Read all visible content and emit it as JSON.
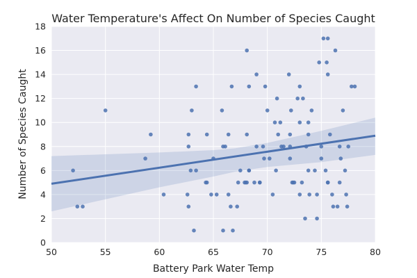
{
  "chart_data": {
    "type": "scatter",
    "title": "Water Temperature's Affect On Number of Species Caught",
    "xlabel": "Battery Park Water Temp",
    "ylabel": "Number of Species Caught",
    "xlim": [
      50,
      80
    ],
    "ylim": [
      0,
      18
    ],
    "xticks": [
      50,
      55,
      60,
      65,
      70,
      75,
      80
    ],
    "yticks": [
      0,
      2,
      4,
      6,
      8,
      10,
      12,
      14,
      16,
      18
    ],
    "grid": true,
    "background": "#EAEAF2",
    "point_color": "#4C72B0",
    "line_color": "#4C72B0",
    "band_color": "#4C72B0",
    "regression": {
      "x": [
        50,
        80
      ],
      "y": [
        4.9,
        8.9
      ]
    },
    "confidence_band": {
      "x": [
        50,
        55,
        60,
        65,
        67,
        70,
        75,
        80
      ],
      "upper": [
        7.2,
        7.35,
        7.5,
        7.7,
        7.85,
        8.3,
        9.3,
        10.4
      ],
      "lower": [
        2.6,
        3.6,
        4.6,
        5.5,
        5.9,
        6.3,
        6.7,
        7.3
      ]
    },
    "points": [
      [
        52.0,
        6
      ],
      [
        52.4,
        3
      ],
      [
        52.9,
        3
      ],
      [
        55.0,
        11
      ],
      [
        58.7,
        7
      ],
      [
        59.2,
        9
      ],
      [
        60.4,
        4
      ],
      [
        62.6,
        4
      ],
      [
        62.7,
        3
      ],
      [
        62.7,
        8
      ],
      [
        62.7,
        9
      ],
      [
        62.9,
        6
      ],
      [
        63.0,
        11
      ],
      [
        63.2,
        1
      ],
      [
        63.4,
        13
      ],
      [
        63.4,
        6
      ],
      [
        64.3,
        5
      ],
      [
        64.4,
        9
      ],
      [
        64.4,
        5
      ],
      [
        64.8,
        4
      ],
      [
        65.0,
        7
      ],
      [
        65.3,
        4
      ],
      [
        65.8,
        11
      ],
      [
        65.9,
        1
      ],
      [
        65.9,
        8
      ],
      [
        66.1,
        8
      ],
      [
        66.4,
        4
      ],
      [
        66.4,
        9
      ],
      [
        66.6,
        3
      ],
      [
        66.7,
        13
      ],
      [
        66.8,
        1
      ],
      [
        67.2,
        3
      ],
      [
        67.3,
        5
      ],
      [
        67.5,
        6
      ],
      [
        67.9,
        5
      ],
      [
        68.0,
        5
      ],
      [
        68.1,
        9
      ],
      [
        68.1,
        5
      ],
      [
        68.1,
        16
      ],
      [
        68.3,
        13
      ],
      [
        68.3,
        6
      ],
      [
        68.3,
        6
      ],
      [
        68.8,
        5
      ],
      [
        69.0,
        14
      ],
      [
        69.0,
        8
      ],
      [
        69.3,
        5
      ],
      [
        69.3,
        5
      ],
      [
        69.6,
        8
      ],
      [
        69.7,
        7
      ],
      [
        69.8,
        13
      ],
      [
        70.0,
        11
      ],
      [
        70.2,
        7
      ],
      [
        70.5,
        4
      ],
      [
        70.7,
        10
      ],
      [
        70.8,
        6
      ],
      [
        70.9,
        12
      ],
      [
        71.0,
        9
      ],
      [
        71.2,
        10
      ],
      [
        71.3,
        8
      ],
      [
        71.5,
        8
      ],
      [
        72.0,
        14
      ],
      [
        72.1,
        9
      ],
      [
        72.1,
        7
      ],
      [
        72.1,
        8
      ],
      [
        72.2,
        11
      ],
      [
        72.3,
        5
      ],
      [
        72.4,
        5
      ],
      [
        72.5,
        5
      ],
      [
        72.8,
        12
      ],
      [
        73.0,
        13
      ],
      [
        73.0,
        10
      ],
      [
        73.0,
        4
      ],
      [
        73.2,
        5
      ],
      [
        73.3,
        12
      ],
      [
        73.5,
        2
      ],
      [
        73.6,
        8
      ],
      [
        73.8,
        10
      ],
      [
        73.8,
        9
      ],
      [
        73.8,
        6
      ],
      [
        73.9,
        4
      ],
      [
        74.1,
        11
      ],
      [
        74.4,
        6
      ],
      [
        74.6,
        2
      ],
      [
        74.6,
        4
      ],
      [
        74.8,
        15
      ],
      [
        75.0,
        7
      ],
      [
        75.0,
        8
      ],
      [
        75.2,
        17
      ],
      [
        75.4,
        6
      ],
      [
        75.5,
        15
      ],
      [
        75.6,
        17
      ],
      [
        75.6,
        14
      ],
      [
        75.6,
        5
      ],
      [
        75.6,
        5
      ],
      [
        75.8,
        9
      ],
      [
        76.0,
        4
      ],
      [
        76.1,
        3
      ],
      [
        76.3,
        16
      ],
      [
        76.5,
        3
      ],
      [
        76.7,
        5
      ],
      [
        76.7,
        8
      ],
      [
        76.8,
        7
      ],
      [
        77.0,
        11
      ],
      [
        77.2,
        6
      ],
      [
        77.3,
        4
      ],
      [
        77.4,
        3
      ],
      [
        77.5,
        8
      ],
      [
        77.8,
        13
      ],
      [
        78.1,
        13
      ]
    ]
  }
}
